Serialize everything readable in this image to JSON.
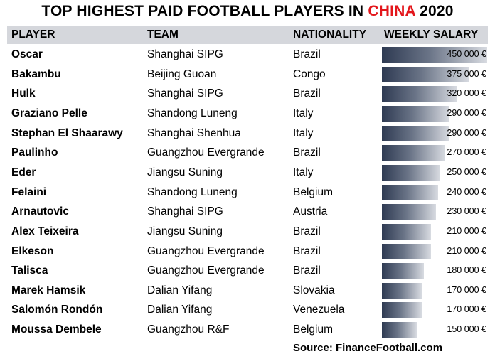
{
  "title": {
    "part1": "TOP HIGHEST PAID FOOTBALL PLAYERS IN ",
    "highlight": "CHINA",
    "part2": " 2020"
  },
  "headers": {
    "player": "PLAYER",
    "team": "TEAM",
    "nationality": "NATIONALITY",
    "salary": "WEEKLY SALARY"
  },
  "colors": {
    "highlight": "#e3161b",
    "header_bg": "#d5d7dc",
    "bar_dark": "#2e3a52",
    "bar_light": "#d8dbe1"
  },
  "chart_data": {
    "type": "table",
    "columns": [
      "PLAYER",
      "TEAM",
      "NATIONALITY",
      "WEEKLY SALARY"
    ],
    "rows": [
      {
        "player": "Oscar",
        "team": "Shanghai SIPG",
        "nationality": "Brazil",
        "salary": 450000,
        "salary_label": "450 000 €"
      },
      {
        "player": "Bakambu",
        "team": "Beijing Guoan",
        "nationality": "Congo",
        "salary": 375000,
        "salary_label": "375 000 €"
      },
      {
        "player": "Hulk",
        "team": "Shanghai SIPG",
        "nationality": "Brazil",
        "salary": 320000,
        "salary_label": "320 000 €"
      },
      {
        "player": "Graziano Pelle",
        "team": "Shandong Luneng",
        "nationality": "Italy",
        "salary": 290000,
        "salary_label": "290 000 €"
      },
      {
        "player": "Stephan El Shaarawy",
        "team": "Shanghai Shenhua",
        "nationality": "Italy",
        "salary": 290000,
        "salary_label": "290 000 €"
      },
      {
        "player": "Paulinho",
        "team": "Guangzhou Evergrande",
        "nationality": "Brazil",
        "salary": 270000,
        "salary_label": "270 000 €"
      },
      {
        "player": "Eder",
        "team": "Jiangsu Suning",
        "nationality": "Italy",
        "salary": 250000,
        "salary_label": "250 000 €"
      },
      {
        "player": "Felaini",
        "team": "Shandong Luneng",
        "nationality": "Belgium",
        "salary": 240000,
        "salary_label": "240 000 €"
      },
      {
        "player": "Arnautovic",
        "team": "Shanghai SIPG",
        "nationality": "Austria",
        "salary": 230000,
        "salary_label": "230 000 €"
      },
      {
        "player": "Alex Teixeira",
        "team": "Jiangsu Suning",
        "nationality": "Brazil",
        "salary": 210000,
        "salary_label": "210 000 €"
      },
      {
        "player": "Elkeson",
        "team": "Guangzhou Evergrande",
        "nationality": "Brazil",
        "salary": 210000,
        "salary_label": "210 000 €"
      },
      {
        "player": "Talisca",
        "team": "Guangzhou Evergrande",
        "nationality": "Brazil",
        "salary": 180000,
        "salary_label": "180 000 €"
      },
      {
        "player": "Marek Hamsik",
        "team": "Dalian Yifang",
        "nationality": "Slovakia",
        "salary": 170000,
        "salary_label": "170 000 €"
      },
      {
        "player": "Salomón Rondón",
        "team": "Dalian Yifang",
        "nationality": "Venezuela",
        "salary": 170000,
        "salary_label": "170 000 €"
      },
      {
        "player": "Moussa Dembele",
        "team": "Guangzhou R&F",
        "nationality": "Belgium",
        "salary": 150000,
        "salary_label": "150 000 €"
      }
    ]
  },
  "source": "Source: FinanceFootball.com"
}
